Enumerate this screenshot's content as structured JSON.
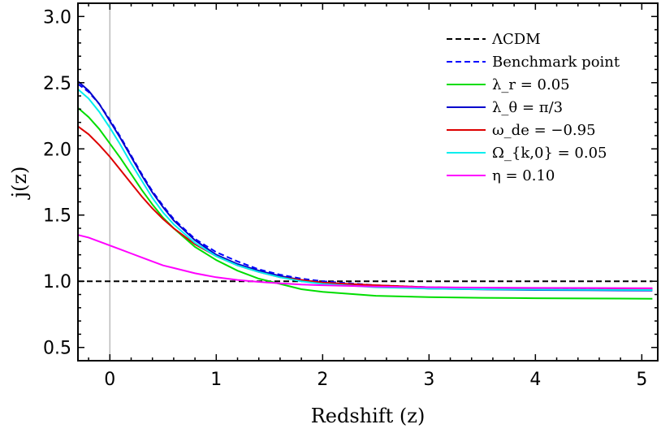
{
  "chart_data": {
    "type": "line",
    "xlabel": "Redshift (z)",
    "ylabel": "j(z)",
    "xlim": [
      -0.3,
      5.15
    ],
    "ylim": [
      0.4,
      3.1
    ],
    "xticks": [
      0,
      1,
      2,
      3,
      4,
      5
    ],
    "xtick_labels": [
      "0",
      "1",
      "2",
      "3",
      "4",
      "5"
    ],
    "yticks": [
      0.5,
      1.0,
      1.5,
      2.0,
      2.5,
      3.0
    ],
    "ytick_labels": [
      "0.5",
      "1.0",
      "1.5",
      "2.0",
      "2.5",
      "3.0"
    ],
    "grid": false,
    "legend_position": "top-right",
    "series": [
      {
        "name": "ΛCDM",
        "color": "#000000",
        "dash": "dashed",
        "x": [
          -0.3,
          0,
          1,
          2,
          3,
          4,
          5.1
        ],
        "y": [
          1.0,
          1.0,
          1.0,
          1.0,
          1.0,
          1.0,
          1.0
        ]
      },
      {
        "name": "Benchmark point",
        "color": "#0000ff",
        "dash": "dashed",
        "x": [
          -0.3,
          -0.2,
          -0.1,
          0,
          0.1,
          0.2,
          0.3,
          0.4,
          0.5,
          0.6,
          0.8,
          1.0,
          1.2,
          1.4,
          1.6,
          1.8,
          2.0,
          2.5,
          3.0,
          3.5,
          4.0,
          4.5,
          5.1
        ],
        "y": [
          2.49,
          2.43,
          2.34,
          2.22,
          2.09,
          1.95,
          1.81,
          1.68,
          1.57,
          1.47,
          1.32,
          1.22,
          1.15,
          1.09,
          1.05,
          1.02,
          1.0,
          0.97,
          0.955,
          0.948,
          0.944,
          0.942,
          0.94
        ]
      },
      {
        "name": "λ_r = 0.05",
        "color": "#00dd00",
        "dash": "solid",
        "x": [
          -0.3,
          -0.2,
          -0.1,
          0,
          0.1,
          0.2,
          0.3,
          0.4,
          0.5,
          0.6,
          0.8,
          1.0,
          1.2,
          1.4,
          1.6,
          1.8,
          2.0,
          2.5,
          3.0,
          3.5,
          4.0,
          4.5,
          5.1
        ],
        "y": [
          2.31,
          2.24,
          2.15,
          2.04,
          1.93,
          1.81,
          1.69,
          1.58,
          1.48,
          1.4,
          1.26,
          1.16,
          1.08,
          1.02,
          0.98,
          0.94,
          0.92,
          0.89,
          0.88,
          0.875,
          0.872,
          0.87,
          0.868
        ]
      },
      {
        "name": "λ_θ = π/3",
        "color": "#0000cc",
        "dash": "solid",
        "x": [
          -0.3,
          -0.2,
          -0.1,
          0,
          0.1,
          0.2,
          0.3,
          0.4,
          0.5,
          0.6,
          0.8,
          1.0,
          1.2,
          1.4,
          1.6,
          1.8,
          2.0,
          2.5,
          3.0,
          3.5,
          4.0,
          4.5,
          5.1
        ],
        "y": [
          2.51,
          2.44,
          2.34,
          2.21,
          2.08,
          1.94,
          1.8,
          1.67,
          1.56,
          1.46,
          1.31,
          1.2,
          1.13,
          1.08,
          1.04,
          1.01,
          0.99,
          0.96,
          0.945,
          0.938,
          0.934,
          0.932,
          0.93
        ]
      },
      {
        "name": "ω_de = −0.95",
        "color": "#dd0000",
        "dash": "solid",
        "x": [
          -0.3,
          -0.2,
          -0.1,
          0,
          0.1,
          0.2,
          0.3,
          0.4,
          0.5,
          0.6,
          0.8,
          1.0,
          1.2,
          1.4,
          1.6,
          1.8,
          2.0,
          2.5,
          3.0,
          3.5,
          4.0,
          4.5,
          5.1
        ],
        "y": [
          2.17,
          2.11,
          2.03,
          1.94,
          1.84,
          1.74,
          1.64,
          1.55,
          1.47,
          1.4,
          1.28,
          1.19,
          1.12,
          1.07,
          1.03,
          1.01,
          0.99,
          0.97,
          0.955,
          0.95,
          0.948,
          0.947,
          0.946
        ]
      },
      {
        "name": "Ω_{k,0} = 0.05",
        "color": "#00eeee",
        "dash": "solid",
        "x": [
          -0.3,
          -0.2,
          -0.1,
          0,
          0.1,
          0.2,
          0.3,
          0.4,
          0.5,
          0.6,
          0.8,
          1.0,
          1.2,
          1.4,
          1.6,
          1.8,
          2.0,
          2.5,
          3.0,
          3.5,
          4.0,
          4.5,
          5.1
        ],
        "y": [
          2.45,
          2.38,
          2.28,
          2.16,
          2.03,
          1.89,
          1.76,
          1.63,
          1.52,
          1.43,
          1.29,
          1.19,
          1.12,
          1.07,
          1.03,
          1.0,
          0.98,
          0.955,
          0.945,
          0.94,
          0.937,
          0.935,
          0.934
        ]
      },
      {
        "name": "η = 0.10",
        "color": "#ff00ff",
        "dash": "solid",
        "x": [
          -0.3,
          -0.2,
          -0.1,
          0,
          0.1,
          0.2,
          0.3,
          0.4,
          0.5,
          0.6,
          0.8,
          1.0,
          1.2,
          1.4,
          1.6,
          1.8,
          2.0,
          2.5,
          3.0,
          3.5,
          4.0,
          4.5,
          5.1
        ],
        "y": [
          1.35,
          1.33,
          1.3,
          1.27,
          1.24,
          1.21,
          1.18,
          1.15,
          1.12,
          1.1,
          1.06,
          1.03,
          1.01,
          0.995,
          0.985,
          0.975,
          0.97,
          0.96,
          0.955,
          0.952,
          0.95,
          0.949,
          0.948
        ]
      }
    ]
  }
}
